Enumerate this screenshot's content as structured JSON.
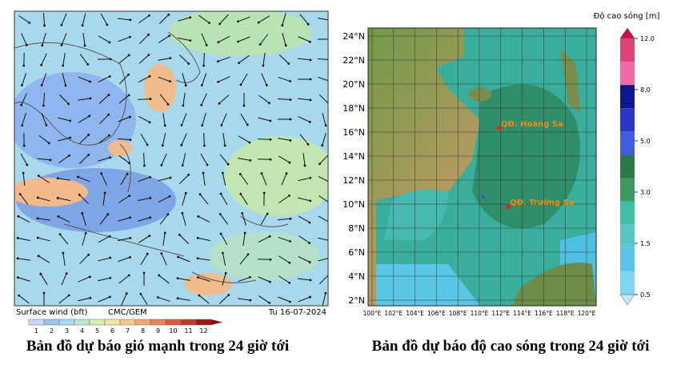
{
  "left_map": {
    "footer_title": "Surface wind (bft)",
    "footer_source": "CMC/GEM",
    "footer_date": "Tu 16-07-2024",
    "colorbar_labels": [
      "1",
      "2",
      "3",
      "4",
      "5",
      "6",
      "7",
      "8",
      "9",
      "10",
      "11",
      "12"
    ],
    "caption": "Bản đồ dự báo gió mạnh trong 24 giờ tới"
  },
  "right_map": {
    "legend_title": "Độ cao sóng [m]",
    "colorbar_labels": [
      "12.0",
      "8.0",
      "5.0",
      "3.0",
      "1.5",
      "0.5"
    ],
    "lat_labels": [
      "24°N",
      "22°N",
      "20°N",
      "18°N",
      "16°N",
      "14°N",
      "12°N",
      "10°N",
      "8°N",
      "6°N",
      "4°N",
      "2°N"
    ],
    "lon_labels": [
      "100°E",
      "102°E",
      "104°E",
      "106°E",
      "108°E",
      "110°E",
      "112°E",
      "114°E",
      "116°E",
      "118°E",
      "120°E"
    ],
    "markers": [
      "QĐ. Hoàng Sa",
      "QĐ. Trường Sa"
    ],
    "caption": "Bản đồ dự báo độ cao sóng trong 24 giờ tới"
  }
}
